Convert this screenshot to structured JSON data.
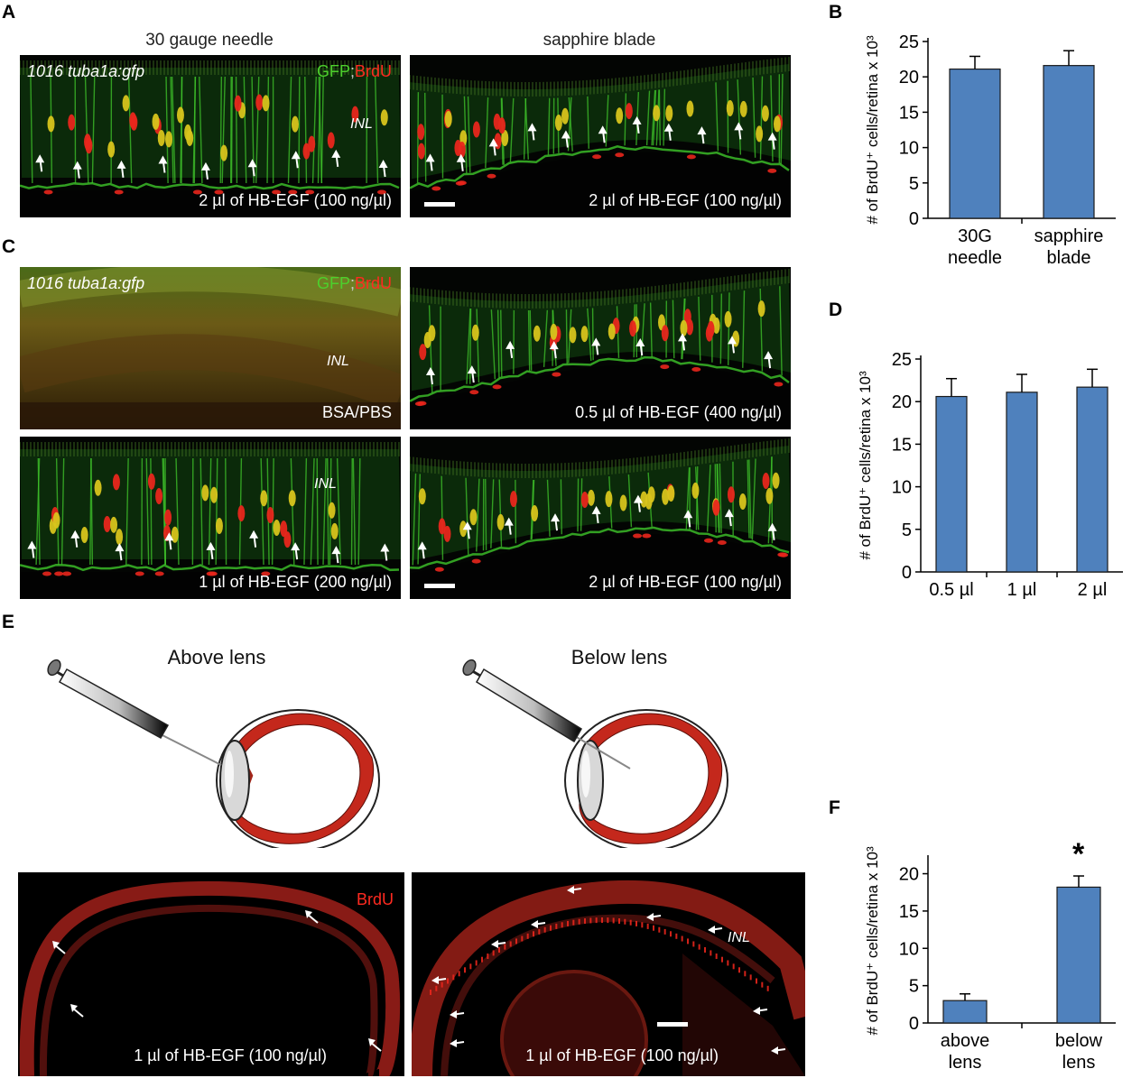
{
  "panels": {
    "A": {
      "letter": "A",
      "left_title": "30 gauge needle",
      "right_title": "sapphire blade",
      "lineage_label": "1016 tuba1a:gfp",
      "channel_gfp": "GFP",
      "channel_sep": ";",
      "channel_brdu": "BrdU",
      "inl_label": "INL",
      "left_caption": "2 µl of HB-EGF (100 ng/µl)",
      "right_caption": "2 µl of HB-EGF (100 ng/µl)"
    },
    "C": {
      "letter": "C",
      "lineage_label": "1016 tuba1a:gfp",
      "channel_gfp": "GFP",
      "channel_sep": ";",
      "channel_brdu": "BrdU",
      "inl_label": "INL",
      "caption_tl": "BSA/PBS",
      "caption_tr": "0.5 µl of HB-EGF (400 ng/µl)",
      "caption_bl": "1 µl of HB-EGF (200 ng/µl)",
      "caption_br": "2 µl of HB-EGF (100 ng/µl)"
    },
    "E": {
      "letter": "E",
      "above_title": "Above lens",
      "below_title": "Below lens",
      "brdu_label": "BrdU",
      "inl_label": "INL",
      "left_caption": "1 µl of HB-EGF (100 ng/µl)",
      "right_caption": "1 µl of HB-EGF (100 ng/µl)"
    },
    "B": {
      "letter": "B"
    },
    "D": {
      "letter": "D"
    },
    "F": {
      "letter": "F",
      "significance": "*"
    }
  },
  "colors": {
    "bar_fill": "#4f81bd",
    "bar_stroke": "#1a1a1a",
    "gfp_green": "#3fc52a",
    "brdu_red": "#e8261c",
    "eye_red": "#c4281c"
  },
  "icons": [
    "arrow-icon",
    "syringe-icon",
    "eye-diagram-icon"
  ],
  "chart_data": [
    {
      "id": "B",
      "type": "bar",
      "ylabel": "# of BrdU⁺ cells/retina x 10³",
      "categories": [
        [
          "30G",
          "needle"
        ],
        [
          "sapphire",
          "blade"
        ]
      ],
      "values": [
        21.1,
        21.6
      ],
      "errors": [
        1.8,
        2.1
      ],
      "ylim": [
        0,
        25
      ],
      "yticks": [
        0,
        5,
        10,
        15,
        20,
        25
      ]
    },
    {
      "id": "D",
      "type": "bar",
      "ylabel": "# of BrdU⁺ cells/retina x 10³",
      "categories": [
        [
          "0.5 µl"
        ],
        [
          "1 µl"
        ],
        [
          "2 µl"
        ]
      ],
      "values": [
        20.6,
        21.1,
        21.7
      ],
      "errors": [
        2.1,
        2.1,
        2.1
      ],
      "ylim": [
        0,
        25
      ],
      "yticks": [
        0,
        5,
        10,
        15,
        20,
        25
      ]
    },
    {
      "id": "F",
      "type": "bar",
      "ylabel": "# of BrdU⁺ cells/retina x 10³",
      "categories": [
        [
          "above",
          "lens"
        ],
        [
          "below",
          "lens"
        ]
      ],
      "values": [
        3.0,
        18.2
      ],
      "errors": [
        0.9,
        1.5
      ],
      "ylim": [
        0,
        22
      ],
      "yticks": [
        0,
        5,
        10,
        15,
        20
      ]
    }
  ]
}
